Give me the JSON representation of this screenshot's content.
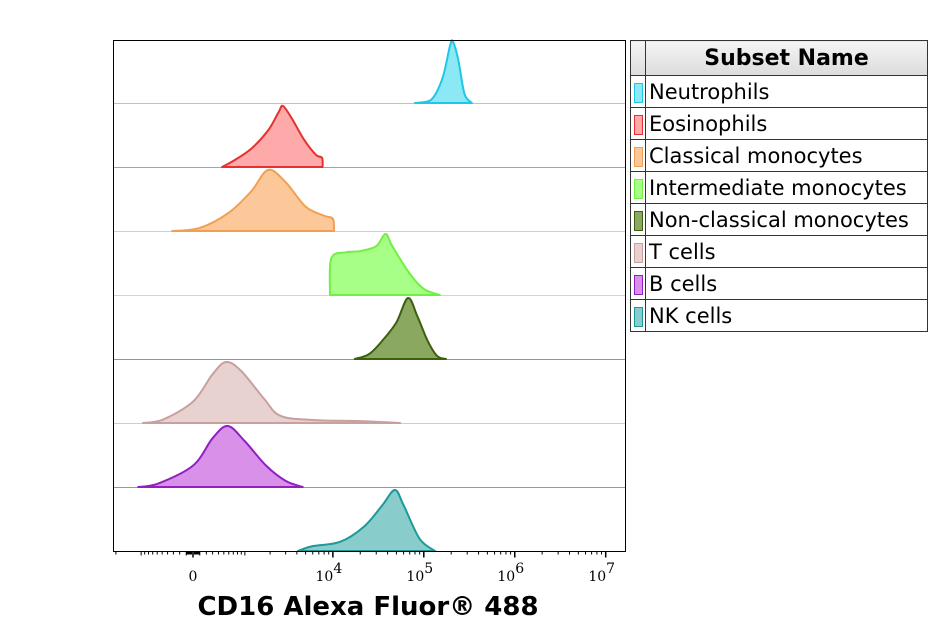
{
  "chart_data": {
    "type": "area",
    "subtype": "staggered histogram overlay",
    "xlabel": "CD16 Alexa Fluor® 488",
    "xscale": "biexponential",
    "xlim": [
      -3000,
      10000000
    ],
    "x_ticks": [
      {
        "value": 0,
        "base": "0",
        "exp": ""
      },
      {
        "value": 10000,
        "base": "10",
        "exp": "4"
      },
      {
        "value": 100000,
        "base": "10",
        "exp": "5"
      },
      {
        "value": 1000000,
        "base": "10",
        "exp": "6"
      },
      {
        "value": 10000000,
        "base": "10",
        "exp": "7"
      }
    ],
    "legend": {
      "title": "Subset Name",
      "placement": "right"
    },
    "series": [
      {
        "name": "Neutrophils",
        "fill": "#8de8f5",
        "stroke": "#1ec6e8",
        "points": [
          [
            80000,
            0
          ],
          [
            120000,
            0.05
          ],
          [
            160000,
            0.4
          ],
          [
            195000,
            0.95
          ],
          [
            210000,
            1
          ],
          [
            240000,
            0.7
          ],
          [
            280000,
            0.15
          ],
          [
            338000,
            0
          ]
        ]
      },
      {
        "name": "Eosinophils",
        "fill": "#ffaaaa",
        "stroke": "#e83030",
        "points": [
          [
            465,
            0
          ],
          [
            700,
            0.1
          ],
          [
            1200,
            0.3
          ],
          [
            1900,
            0.6
          ],
          [
            2500,
            0.9
          ],
          [
            2800,
            1
          ],
          [
            3500,
            0.8
          ],
          [
            4800,
            0.45
          ],
          [
            6500,
            0.2
          ],
          [
            7600,
            0.15
          ],
          [
            7700,
            0
          ]
        ]
      },
      {
        "name": "Classical monocytes",
        "fill": "#fcc89a",
        "stroke": "#f0a050",
        "points": [
          [
            -320,
            0
          ],
          [
            100,
            0.05
          ],
          [
            600,
            0.3
          ],
          [
            1200,
            0.65
          ],
          [
            1900,
            1
          ],
          [
            3000,
            0.8
          ],
          [
            5000,
            0.4
          ],
          [
            8000,
            0.25
          ],
          [
            10000,
            0.2
          ],
          [
            10300,
            0
          ]
        ]
      },
      {
        "name": "Intermediate monocytes",
        "fill": "#a8ff88",
        "stroke": "#70f040",
        "points": [
          [
            9300,
            0
          ],
          [
            9600,
            0.6
          ],
          [
            14000,
            0.7
          ],
          [
            20000,
            0.72
          ],
          [
            30000,
            0.8
          ],
          [
            38000,
            1
          ],
          [
            45000,
            0.8
          ],
          [
            70000,
            0.35
          ],
          [
            100000,
            0.1
          ],
          [
            150000,
            0
          ]
        ]
      },
      {
        "name": "Non-classical monocytes",
        "fill": "#8aa860",
        "stroke": "#3c6010",
        "points": [
          [
            17400,
            0
          ],
          [
            25000,
            0.08
          ],
          [
            35000,
            0.3
          ],
          [
            50000,
            0.6
          ],
          [
            67000,
            1
          ],
          [
            85000,
            0.7
          ],
          [
            110000,
            0.3
          ],
          [
            140000,
            0.05
          ],
          [
            175000,
            0
          ]
        ]
      },
      {
        "name": "T cells",
        "fill": "#e8d2d0",
        "stroke": "#c8a0a0",
        "points": [
          [
            -950,
            0
          ],
          [
            -500,
            0.05
          ],
          [
            0,
            0.35
          ],
          [
            300,
            0.8
          ],
          [
            545,
            1
          ],
          [
            900,
            0.85
          ],
          [
            1700,
            0.4
          ],
          [
            2600,
            0.12
          ],
          [
            6000,
            0.05
          ],
          [
            20000,
            0.03
          ],
          [
            55000,
            0
          ]
        ]
      },
      {
        "name": "B cells",
        "fill": "#d890e8",
        "stroke": "#9020c0",
        "points": [
          [
            -1090,
            0
          ],
          [
            -600,
            0.05
          ],
          [
            0,
            0.35
          ],
          [
            300,
            0.8
          ],
          [
            580,
            1
          ],
          [
            1000,
            0.75
          ],
          [
            1800,
            0.35
          ],
          [
            3000,
            0.1
          ],
          [
            4650,
            0
          ]
        ]
      },
      {
        "name": "NK cells",
        "fill": "#88cccc",
        "stroke": "#209898",
        "points": [
          [
            4100,
            0
          ],
          [
            6000,
            0.08
          ],
          [
            12000,
            0.15
          ],
          [
            22000,
            0.4
          ],
          [
            35000,
            0.75
          ],
          [
            48000,
            1
          ],
          [
            60000,
            0.75
          ],
          [
            90000,
            0.2
          ],
          [
            133000,
            0
          ]
        ]
      }
    ]
  }
}
